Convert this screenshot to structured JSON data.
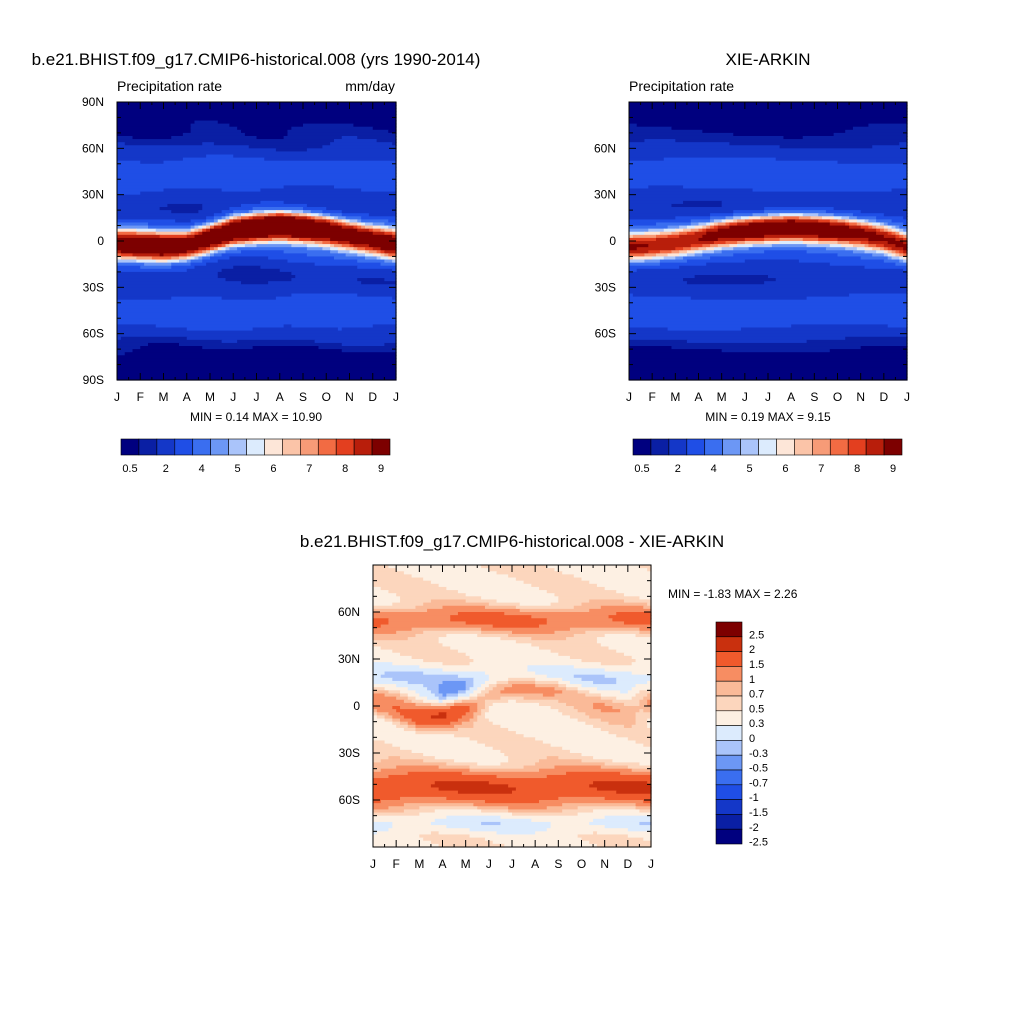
{
  "colors": {
    "precip_scale": [
      "#00007f",
      "#0a1fa4",
      "#1437c8",
      "#1f4ee6",
      "#3a6ef0",
      "#6c97f5",
      "#aac4fa",
      "#dcebfd",
      "#fde6d8",
      "#fbc4a8",
      "#f79b77",
      "#f26b43",
      "#e33f1f",
      "#b81e0b",
      "#7d0000"
    ],
    "diff_scale": [
      "#00007f",
      "#0a1fa4",
      "#1437c8",
      "#1f4ee6",
      "#3a6ef0",
      "#6c97f5",
      "#aac4fa",
      "#dcebfd",
      "#fdf0e3",
      "#fcd6bd",
      "#faba98",
      "#f78d62",
      "#f05a2c",
      "#c9300e",
      "#7d0000"
    ]
  },
  "chart_data": [
    {
      "type": "heatmap",
      "title": "b.e21.BHIST.f09_g17.CMIP6-historical.008 (yrs 1990-2014)",
      "subtitle_left": "Precipitation rate",
      "subtitle_right": "mm/day",
      "x_tick_labels": [
        "J",
        "F",
        "M",
        "A",
        "M",
        "J",
        "J",
        "A",
        "S",
        "O",
        "N",
        "D",
        "J"
      ],
      "y_tick_labels": [
        "90N",
        "60N",
        "30N",
        "0",
        "30S",
        "60S",
        "90S"
      ],
      "y_ticks": [
        90,
        60,
        30,
        0,
        -30,
        -60,
        -90
      ],
      "ylim": [
        -90,
        90
      ],
      "stats": "MIN =   0.14 MAX =  10.90",
      "min": 0.14,
      "max": 10.9,
      "colorbar_labels": [
        "0.5",
        "2",
        "4",
        "5",
        "6",
        "7",
        "8",
        "9"
      ],
      "itcz_lat": [
        -2,
        -3,
        -4,
        -3,
        2,
        7,
        9,
        10,
        9,
        7,
        4,
        1,
        -2
      ],
      "itcz_peak": [
        7.6,
        7.9,
        8.2,
        7.6,
        8.8,
        10.0,
        10.6,
        10.9,
        10.5,
        9.3,
        8.2,
        7.4,
        7.6
      ]
    },
    {
      "type": "heatmap",
      "title": "XIE-ARKIN",
      "subtitle_left": "Precipitation rate",
      "subtitle_right": "",
      "x_tick_labels": [
        "J",
        "F",
        "M",
        "A",
        "M",
        "J",
        "J",
        "A",
        "S",
        "O",
        "N",
        "D",
        "J"
      ],
      "y_tick_labels": [
        "60N",
        "30N",
        "0",
        "30S",
        "60S"
      ],
      "y_ticks": [
        60,
        30,
        0,
        -30,
        -60
      ],
      "ylim": [
        -90,
        90
      ],
      "stats": "MIN =   0.19 MAX =   9.15",
      "min": 0.19,
      "max": 9.15,
      "colorbar_labels": [
        "0.5",
        "2",
        "4",
        "5",
        "6",
        "7",
        "8",
        "9"
      ],
      "itcz_lat": [
        -4,
        -3,
        -1,
        2,
        5,
        7,
        8,
        9,
        8,
        7,
        5,
        2,
        -4
      ],
      "itcz_peak": [
        5.8,
        5.5,
        5.6,
        6.0,
        7.4,
        8.4,
        8.9,
        9.15,
        8.9,
        8.1,
        7.0,
        6.2,
        5.8
      ]
    },
    {
      "type": "heatmap",
      "title": "b.e21.BHIST.f09_g17.CMIP6-historical.008 - XIE-ARKIN",
      "x_tick_labels": [
        "J",
        "F",
        "M",
        "A",
        "M",
        "J",
        "J",
        "A",
        "S",
        "O",
        "N",
        "D",
        "J"
      ],
      "y_tick_labels": [
        "60N",
        "30N",
        "0",
        "30S",
        "60S"
      ],
      "y_ticks": [
        60,
        30,
        0,
        -30,
        -60
      ],
      "ylim": [
        -90,
        90
      ],
      "stats": "MIN =  -1.83 MAX =   2.26",
      "min": -1.83,
      "max": 2.26,
      "colorbar_labels": [
        "2.5",
        "2",
        "1.5",
        "1",
        "0.7",
        "0.5",
        "0.3",
        "0",
        "-0.3",
        "-0.5",
        "-0.7",
        "-1",
        "-1.5",
        "-2",
        "-2.5"
      ]
    }
  ]
}
